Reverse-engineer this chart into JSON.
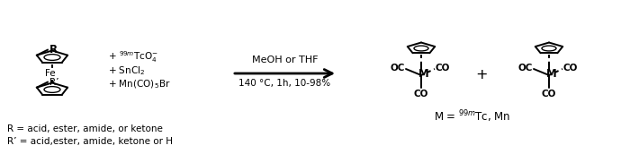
{
  "bg_color": "#ffffff",
  "fig_width": 7.0,
  "fig_height": 1.72,
  "dpi": 100,
  "reagents_text1": "+ $^{99m}$TcO$_4^{-}$",
  "reagents_text2": "+ SnCl$_2$",
  "reagents_text3": "+ Mn(CO)$_5$Br",
  "arrow_label_top": "MeOH or THF",
  "arrow_label_bottom": "140 °C, 1h, 10-98%",
  "yield_label": "M = $^{99m}$Tc, Mn",
  "footnote1": "R = acid, ester, amide, or ketone",
  "footnote2": "R’ = acid,ester, amide, ketone or H",
  "plus_sign": "+",
  "R_label": "R",
  "Rprime_label": "R’",
  "Fe_label": "Fe",
  "M_label": "M",
  "text_color": "#000000",
  "line_color": "#000000",
  "font_size_main": 8.5,
  "font_size_small": 7.5,
  "font_size_footnote": 7.5
}
